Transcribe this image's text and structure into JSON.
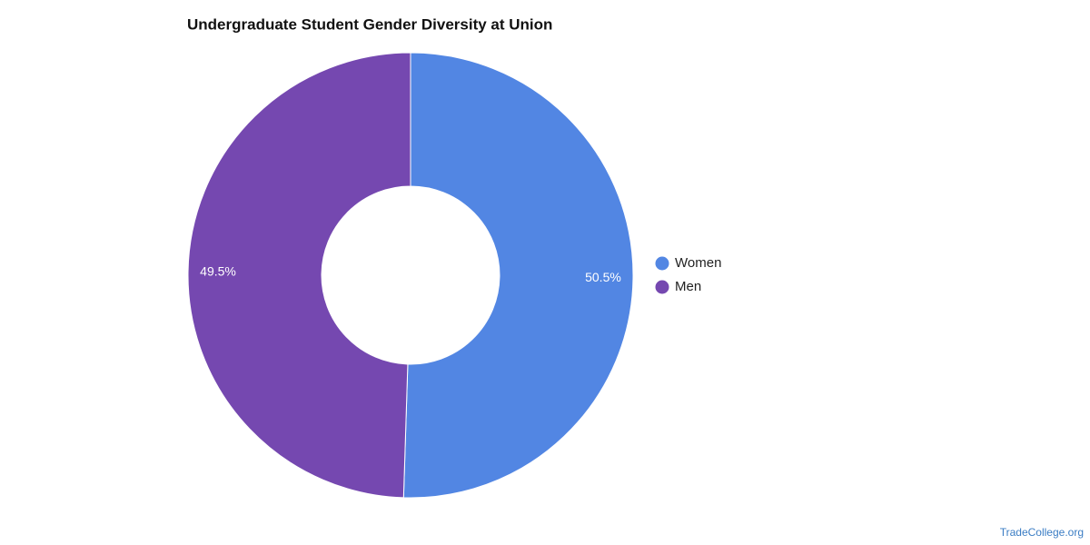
{
  "chart_data": {
    "type": "donut",
    "title": "Undergraduate Student Gender Diversity at Union",
    "categories": [
      "Women",
      "Men"
    ],
    "values": [
      50.5,
      49.5
    ],
    "value_labels": [
      "50.5%",
      "49.5%"
    ],
    "colors": [
      "#5286e3",
      "#7548b0"
    ],
    "legend": "right"
  },
  "source": "TradeCollege.org"
}
